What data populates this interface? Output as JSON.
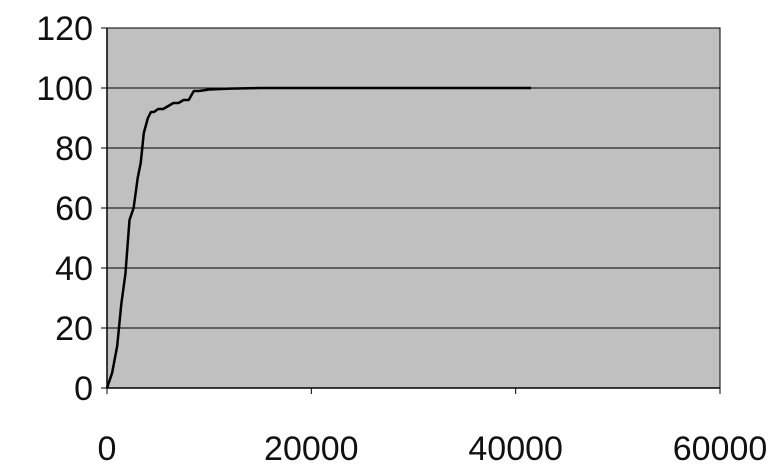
{
  "chart_data": {
    "type": "line",
    "title": "",
    "xlabel": "",
    "ylabel": "",
    "xlim": [
      0,
      60000
    ],
    "ylim": [
      0,
      120
    ],
    "xticks": [
      0,
      20000,
      40000,
      60000
    ],
    "yticks": [
      0,
      20,
      40,
      60,
      80,
      100,
      120
    ],
    "xtick_labels": [
      "0",
      "20000",
      "40000",
      "60000"
    ],
    "ytick_labels": [
      "0",
      "20",
      "40",
      "60",
      "80",
      "100",
      "120"
    ],
    "grid": "horizontal",
    "legend": "none",
    "series": [
      {
        "x": [
          0,
          500,
          1000,
          1400,
          1800,
          2200,
          2600,
          3000,
          3300,
          3600,
          4000,
          4300,
          4600,
          5000,
          5500,
          6000,
          6500,
          7000,
          7500,
          8000,
          8500,
          9000,
          10000,
          12000,
          15000,
          20000,
          25000,
          30000,
          35000,
          41500
        ],
        "y": [
          0,
          5,
          14,
          28,
          38,
          56,
          60,
          70,
          75,
          85,
          90,
          92,
          92,
          93,
          93,
          94,
          95,
          95,
          96,
          96,
          99,
          99,
          99.5,
          99.8,
          100,
          100,
          100,
          100,
          100,
          100
        ]
      }
    ],
    "colors": {
      "plot_background": "#c0c0c0",
      "gridline": "#000000",
      "line": "#000000",
      "axis": "#000000",
      "page_background": "#ffffff"
    }
  }
}
